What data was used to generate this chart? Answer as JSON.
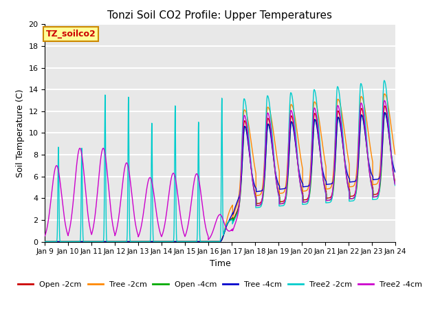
{
  "title": "Tonzi Soil CO2 Profile: Upper Temperatures",
  "xlabel": "Time",
  "ylabel": "Soil Temperature (C)",
  "ylim": [
    0,
    20
  ],
  "xlim_days": [
    9,
    24
  ],
  "background_color": "#e8e8e8",
  "label_box_text": "TZ_soilco2",
  "label_box_color": "#ffff99",
  "label_box_border": "#cc8800",
  "series": [
    {
      "name": "Open -2cm",
      "color": "#cc0000"
    },
    {
      "name": "Tree -2cm",
      "color": "#ff8800"
    },
    {
      "name": "Open -4cm",
      "color": "#00aa00"
    },
    {
      "name": "Tree -4cm",
      "color": "#0000cc"
    },
    {
      "name": "Tree2 -2cm",
      "color": "#00cccc"
    },
    {
      "name": "Tree2 -4cm",
      "color": "#cc00cc"
    }
  ],
  "tick_positions": [
    9,
    10,
    11,
    12,
    13,
    14,
    15,
    16,
    17,
    18,
    19,
    20,
    21,
    22,
    23,
    24
  ],
  "tick_labels": [
    "Jan 9",
    "Jan 10",
    "Jan 11",
    "Jan 12",
    "Jan 13",
    "Jan 14",
    "Jan 15",
    "Jan 16",
    "Jan 17",
    "Jan 18",
    "Jan 19",
    "Jan 20",
    "Jan 21",
    "Jan 22",
    "Jan 23",
    "Jan 24"
  ],
  "figsize": [
    6.4,
    4.8
  ],
  "dpi": 100
}
